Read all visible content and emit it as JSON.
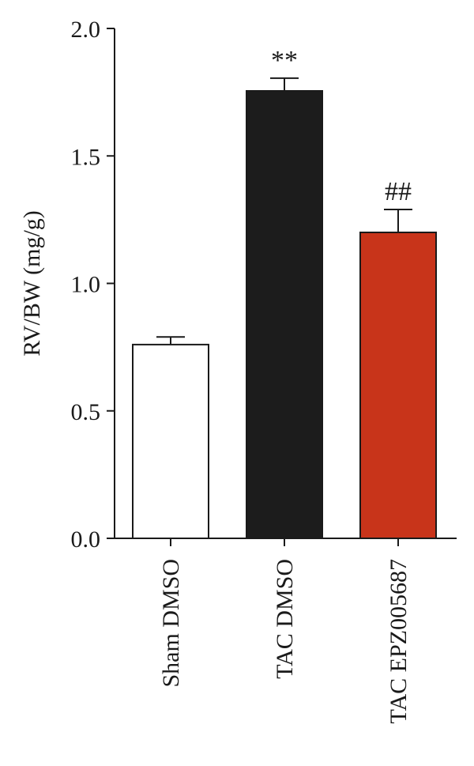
{
  "chart_data": {
    "type": "bar",
    "title": "",
    "xlabel": "",
    "ylabel": "RV/BW (mg/g)",
    "ylim": [
      0,
      2.0
    ],
    "yticks": [
      0.0,
      0.5,
      1.0,
      1.5,
      2.0
    ],
    "ytick_labels": [
      "0.0",
      "0.5",
      "1.0",
      "1.5",
      "2.0"
    ],
    "grid": false,
    "legend": "none",
    "categories": [
      "Sham DMSO",
      "TAC DMSO",
      "TAC EPZ005687"
    ],
    "values": [
      0.76,
      1.755,
      1.2
    ],
    "errors": [
      0.03,
      0.05,
      0.09
    ],
    "annotations": [
      "",
      "**",
      "##"
    ],
    "colors": [
      "#ffffff",
      "#1c1c1c",
      "#c8341a"
    ],
    "edge_color": "#1a1a1a"
  }
}
